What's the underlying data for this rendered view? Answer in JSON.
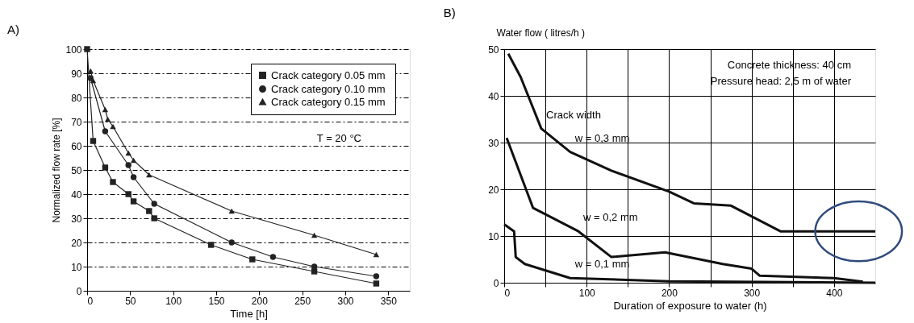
{
  "chart_data": [
    {
      "type": "line",
      "title": "A)",
      "xlabel": "Time  [h]",
      "ylabel": "Normalized flow rate  [%]",
      "xlim": [
        0,
        375
      ],
      "xticks": [
        0,
        50,
        100,
        150,
        200,
        250,
        300,
        350
      ],
      "ylim": [
        0,
        100
      ],
      "yticks": [
        0,
        10,
        20,
        30,
        40,
        50,
        60,
        70,
        80,
        90,
        100
      ],
      "grid": "y",
      "legend": "top right",
      "line_style": "solid",
      "series": [
        {
          "name": "Crack category  0.05 mm",
          "color": "#222222",
          "marker": "square",
          "x": [
            0,
            7,
            21,
            30,
            48,
            54,
            72,
            78,
            144,
            192,
            264,
            336
          ],
          "values": [
            100,
            62,
            51,
            45,
            40,
            37,
            33,
            30,
            19,
            13,
            8,
            3
          ]
        },
        {
          "name": "Crack category  0.10 mm",
          "color": "#222222",
          "marker": "circle",
          "x": [
            4,
            21,
            48,
            54,
            78,
            168,
            216,
            264,
            336
          ],
          "values": [
            88,
            66,
            52,
            47,
            36,
            20,
            14,
            10,
            6
          ]
        },
        {
          "name": "Crack category  0.15 mm",
          "color": "#222222",
          "marker": "triangle",
          "x": [
            4,
            7,
            21,
            24,
            30,
            48,
            54,
            72,
            168,
            264,
            336
          ],
          "values": [
            91,
            87,
            75,
            71,
            68,
            57,
            54,
            48,
            33,
            23,
            15
          ]
        }
      ],
      "annotations": [
        "T = 20 °C"
      ]
    },
    {
      "type": "line",
      "title": "B)",
      "xlabel": "Duration of exposure to water (h)",
      "ylabel": "Water flow ( litres/h )",
      "xlim": [
        0,
        450
      ],
      "xticks": [
        0,
        {
          "value": 50,
          "label": null
        },
        100,
        {
          "value": 150,
          "label": null
        },
        200,
        {
          "value": 250,
          "label": null
        },
        300,
        {
          "value": 350,
          "label": null
        },
        400
      ],
      "ylim": [
        0,
        50
      ],
      "yticks": [
        0,
        10,
        20,
        30,
        40,
        50
      ],
      "grid": true,
      "legend": false,
      "marker": "none",
      "line_style": "solid",
      "series": [
        {
          "color": "#111111",
          "x": [
            5,
            20,
            45,
            80,
            130,
            200,
            230,
            275,
            335,
            450
          ],
          "values": [
            49,
            44,
            33,
            28,
            24,
            19.5,
            17,
            16.5,
            11,
            11
          ]
        },
        {
          "color": "#111111",
          "x": [
            3,
            35,
            90,
            130,
            195,
            265,
            300,
            310,
            400,
            435
          ],
          "values": [
            31,
            16,
            11,
            5.5,
            6.5,
            4,
            3,
            1.5,
            1,
            0.2
          ]
        },
        {
          "color": "#111111",
          "x": [
            0,
            12,
            14,
            25,
            80,
            200,
            450
          ],
          "values": [
            12.5,
            11,
            5.5,
            4,
            1,
            0.3,
            0
          ]
        }
      ],
      "annotations": [
        "Concrete thickness: 40 cm",
        "Pressure  head: 2,5 m of water",
        {
          "text": "Crack width",
          "x": 45,
          "y": 33
        },
        {
          "text": "w = 0,3 mm",
          "x": 80,
          "y": 28
        },
        {
          "text": "w = 0,2 mm",
          "x": 90,
          "y": 11
        },
        {
          "text": "w = 0,1 mm",
          "x": 80,
          "y": 1
        }
      ]
    }
  ]
}
